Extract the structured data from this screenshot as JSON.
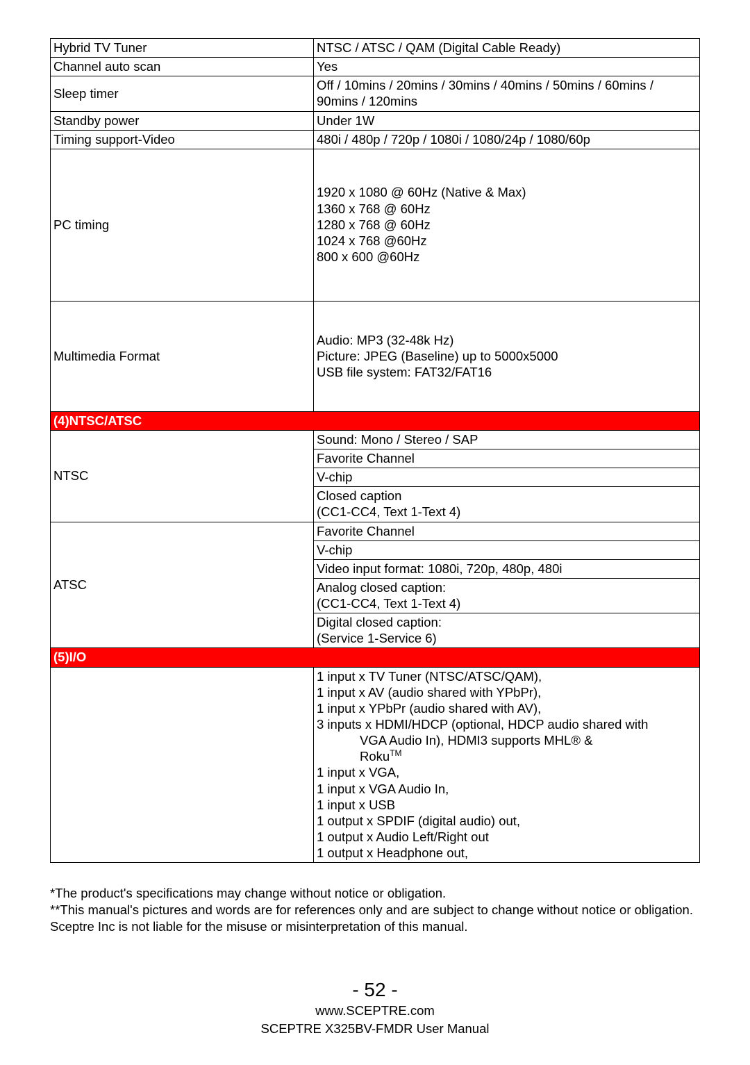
{
  "colors": {
    "section_bg": "#ff0000",
    "section_text": "#ffffff",
    "border": "#000000",
    "page_bg": "#ffffff",
    "body_text": "#000000"
  },
  "rows": {
    "hybrid_tuner_label": "Hybrid TV Tuner",
    "hybrid_tuner_value": "NTSC / ATSC / QAM (Digital Cable Ready)",
    "chan_auto_label": "Channel auto scan",
    "chan_auto_value": "Yes",
    "sleep_label": "Sleep timer",
    "sleep_value": "Off / 10mins / 20mins / 30mins / 40mins / 50mins / 60mins / 90mins / 120mins",
    "standby_label": "Standby power",
    "standby_value": "Under 1W",
    "timing_video_label": "Timing support-Video",
    "timing_video_value": "480i / 480p / 720p / 1080i  / 1080/24p / 1080/60p",
    "pc_timing_label": "PC timing",
    "pc_timing_value": "1920 x 1080 @ 60Hz (Native & Max)\n1360 x 768 @ 60Hz\n1280 x 768 @ 60Hz\n1024 x 768 @60Hz\n800 x 600 @60Hz",
    "mm_label": "Multimedia Format",
    "mm_value": "Audio: MP3 (32-48k Hz)\nPicture: JPEG (Baseline) up to 5000x5000\nUSB file system: FAT32/FAT16",
    "section4": "(4)NTSC/ATSC",
    "ntsc_label": "NTSC",
    "ntsc_v1": "Sound: Mono / Stereo / SAP",
    "ntsc_v2": "Favorite Channel",
    "ntsc_v3": "V-chip",
    "ntsc_v4": "Closed caption\n(CC1-CC4, Text 1-Text 4)",
    "atsc_label": "ATSC",
    "atsc_v1": "Favorite Channel",
    "atsc_v2": "V-chip",
    "atsc_v3": "Video input format: 1080i, 720p, 480p, 480i",
    "atsc_v4": "Analog closed caption:\n(CC1-CC4, Text 1-Text 4)",
    "atsc_v5": "Digital closed caption:\n(Service 1-Service 6)",
    "section5": "(5)I/O",
    "io_l1": "1 input x TV Tuner (NTSC/ATSC/QAM),",
    "io_l2": "1 input x AV (audio shared with YPbPr),",
    "io_l3": "1 input x YPbPr (audio shared with AV),",
    "io_l4a": "3 inputs x HDMI/HDCP (optional, HDCP audio shared with",
    "io_l4b": "VGA Audio In), HDMI3 supports MHL® &",
    "io_l4c_prefix": "Roku",
    "io_l4c_tm": "TM",
    "io_l5": "1 input x VGA,",
    "io_l6": "1 input x VGA Audio In,",
    "io_l7": "1 input x USB",
    "io_l8": "1 output x SPDIF (digital audio) out,",
    "io_l9": "1 output x Audio Left/Right out",
    "io_l10": "1 output x Headphone out,"
  },
  "footnotes": {
    "f1": "*The product's specifications may change without notice or obligation.",
    "f2": "**This manual's pictures and words are for references only and are subject to change without notice or obligation.  Sceptre Inc is not liable for the misuse or misinterpretation of this manual."
  },
  "footer": {
    "page_number": "- 52 -",
    "url": "www.SCEPTRE.com",
    "manual": "SCEPTRE X325BV-FMDR User Manual"
  }
}
